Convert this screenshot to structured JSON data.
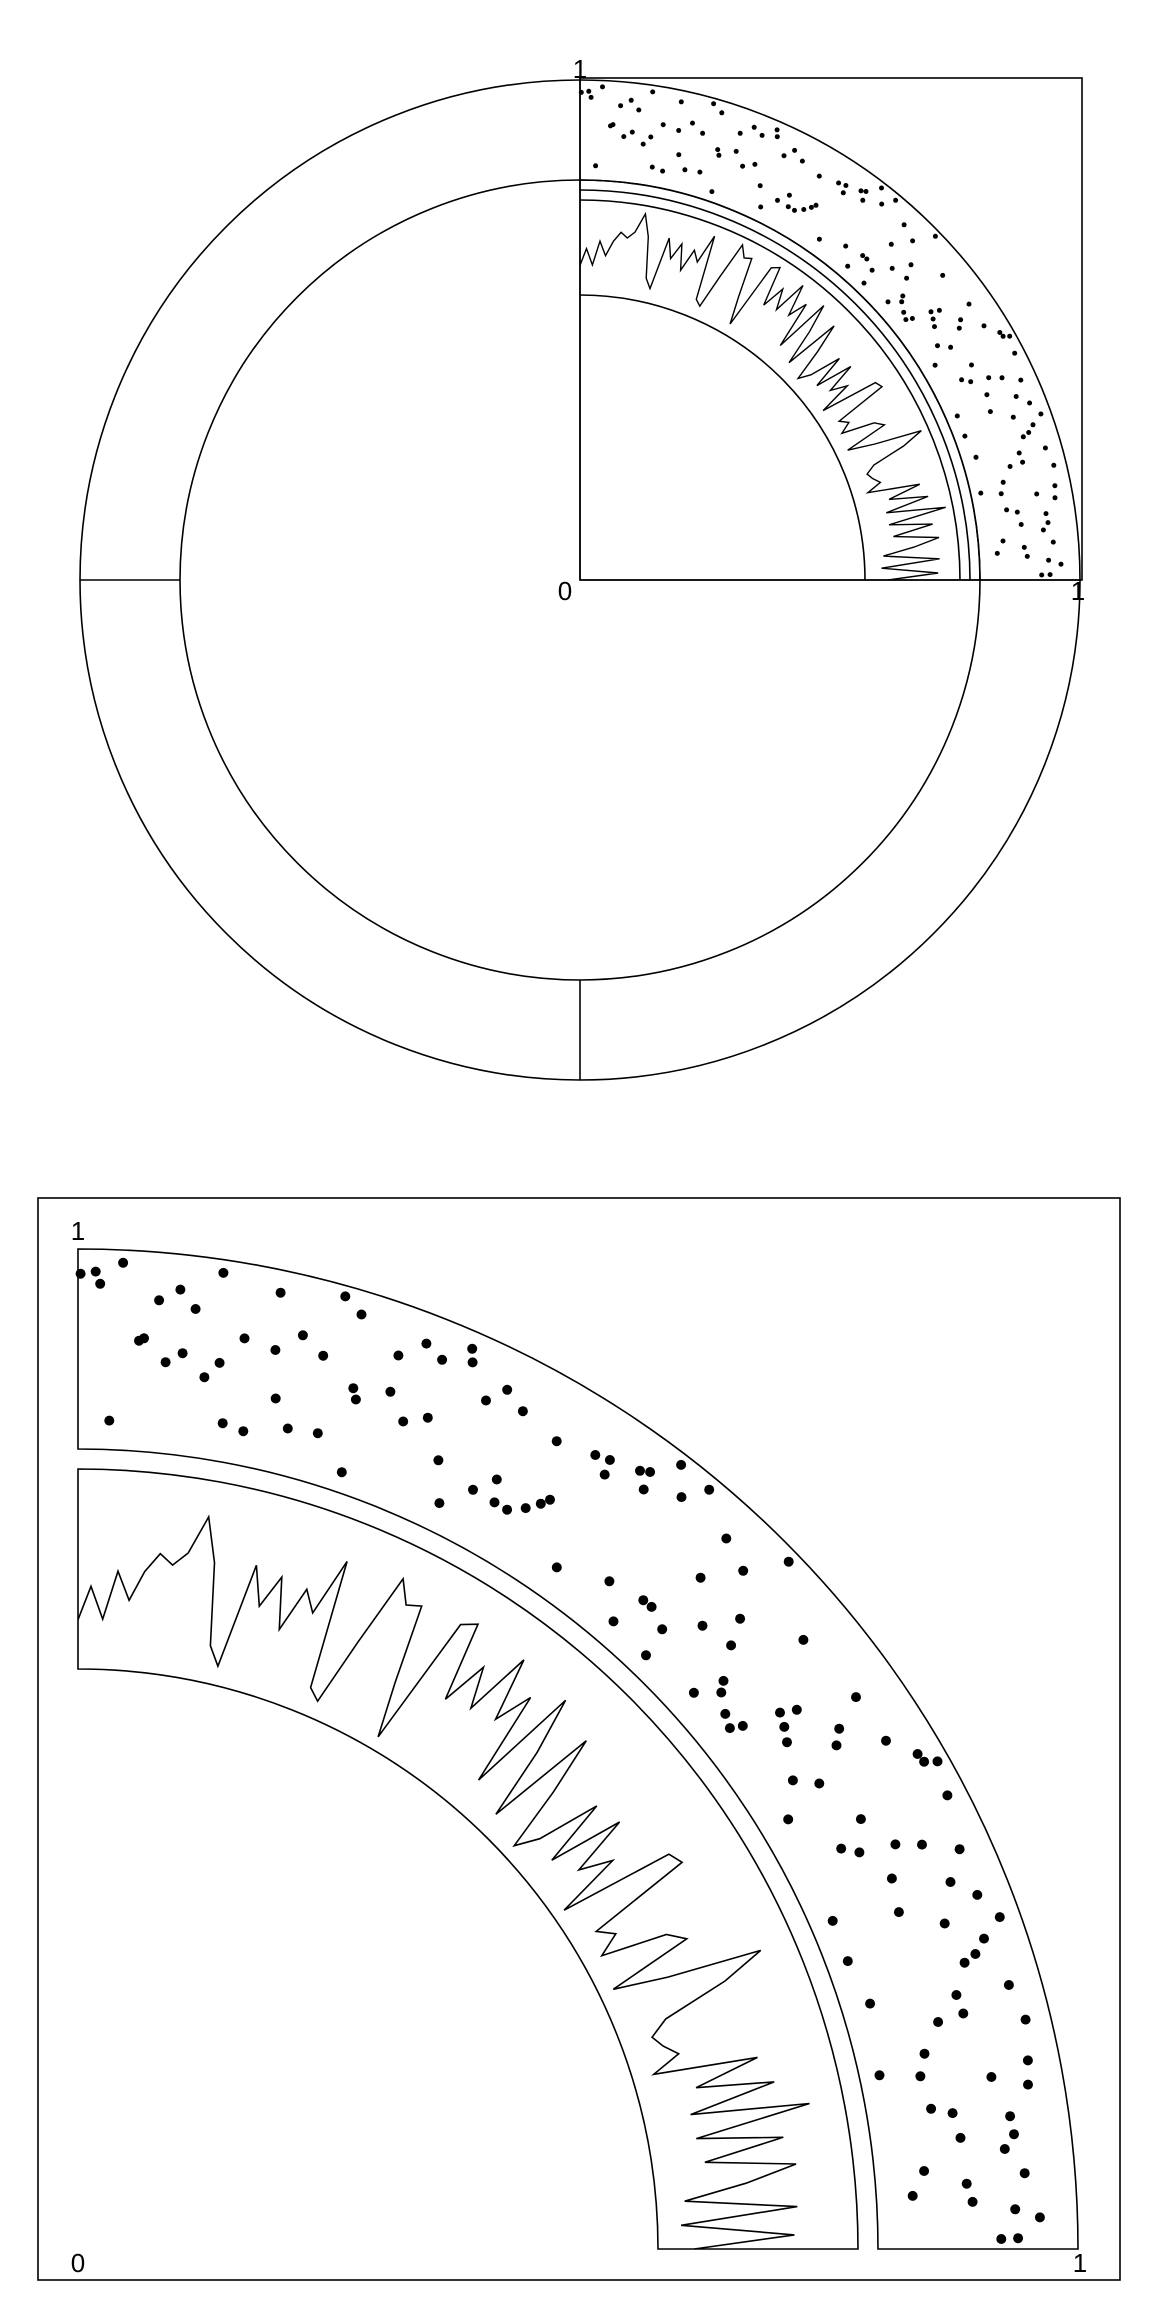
{
  "figure": {
    "line_color": "#000000",
    "background": "#ffffff"
  },
  "top_panel": {
    "labels": {
      "origin": "0",
      "x_max": "1",
      "y_max": "1"
    }
  },
  "bottom_panel": {
    "labels": {
      "origin": "0",
      "x_max": "1",
      "y_max": "1"
    }
  }
}
